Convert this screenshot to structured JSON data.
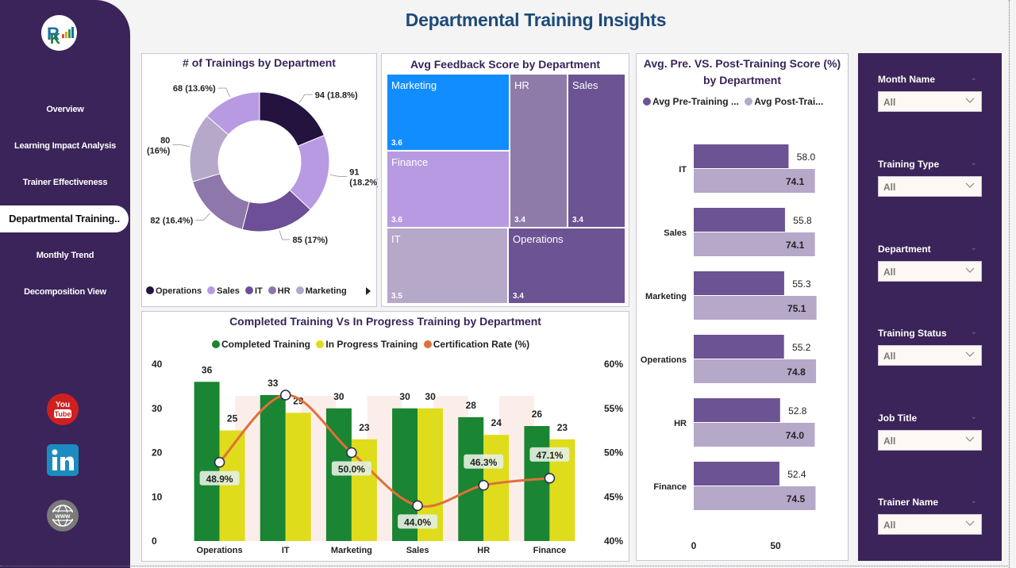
{
  "header": {
    "title": "Departmental Training Insights"
  },
  "nav": {
    "items": [
      {
        "label": "Overview",
        "active": false
      },
      {
        "label": "Learning Impact Analysis",
        "active": false
      },
      {
        "label": "Trainer Effectiveness",
        "active": false
      },
      {
        "label": "Departmental Training..",
        "active": true
      },
      {
        "label": "Monthly Trend",
        "active": false
      },
      {
        "label": "Decomposition View",
        "active": false
      }
    ],
    "social": [
      "youtube-icon",
      "linkedin-icon",
      "website-icon"
    ]
  },
  "filters": [
    {
      "label": "Month Name",
      "value": "All"
    },
    {
      "label": "Training Type",
      "value": "All"
    },
    {
      "label": "Department",
      "value": "All"
    },
    {
      "label": "Training Status",
      "value": "All"
    },
    {
      "label": "Job Title",
      "value": "All"
    },
    {
      "label": "Trainer Name",
      "value": "All"
    }
  ],
  "chart_data": [
    {
      "id": "donut",
      "type": "pie",
      "title": "# of Trainings by Department",
      "categories": [
        "Operations",
        "Sales",
        "IT",
        "HR",
        "Marketing",
        "Finance"
      ],
      "values": [
        94,
        91,
        85,
        82,
        80,
        68
      ],
      "labels": [
        "94 (18.8%)",
        "91 (18.2%)",
        "85 (17%)",
        "82 (16.4%)",
        "80 (16%)",
        "68 (13.6%)"
      ],
      "colors": [
        "#24123f",
        "#b89ae3",
        "#6c4f97",
        "#8e77ab",
        "#b5a8c8",
        "#b89ae3"
      ],
      "legend": [
        "Operations",
        "Sales",
        "IT",
        "HR",
        "Marketing"
      ],
      "legend_placement": "bottom"
    },
    {
      "id": "treemap",
      "type": "treemap",
      "title": "Avg Feedback Score by Department",
      "categories": [
        "Marketing",
        "Finance",
        "IT",
        "HR",
        "Sales",
        "Operations"
      ],
      "values": [
        3.6,
        3.6,
        3.5,
        3.4,
        3.4,
        3.4
      ],
      "colors": [
        "#118dff",
        "#b89ae3",
        "#b5a8c8",
        "#8e7ba9",
        "#6c5393",
        "#6c5393"
      ]
    },
    {
      "id": "hbar",
      "type": "bar",
      "orientation": "horizontal",
      "title": "Avg. Pre. VS. Post-Training Score (%) by Department",
      "categories": [
        "IT",
        "Sales",
        "Marketing",
        "Operations",
        "HR",
        "Finance"
      ],
      "series": [
        {
          "name": "Avg Pre-Training ...",
          "values": [
            58.0,
            55.8,
            55.3,
            55.2,
            52.8,
            52.4
          ],
          "color": "#6c5393"
        },
        {
          "name": "Avg Post-Trai...",
          "values": [
            74.1,
            74.1,
            75.1,
            74.8,
            74.0,
            74.5
          ],
          "color": "#b5a8c8"
        }
      ],
      "xticks": [
        "0",
        "50"
      ],
      "xlim": [
        0,
        100
      ],
      "legend_placement": "top"
    },
    {
      "id": "combo",
      "type": "bar",
      "title": "Completed Training Vs In Progress Training by Department",
      "categories": [
        "Operations",
        "IT",
        "Marketing",
        "Sales",
        "HR",
        "Finance"
      ],
      "series": [
        {
          "name": "Completed Training",
          "values": [
            36,
            33,
            30,
            30,
            28,
            26
          ],
          "color": "#1a8532"
        },
        {
          "name": "In Progress Training",
          "values": [
            25,
            29,
            23,
            30,
            24,
            23
          ],
          "color": "#dfdc1b"
        },
        {
          "name": "Certification Rate (%)",
          "type": "line",
          "axis": "right",
          "values": [
            48.9,
            56.5,
            50.0,
            44.0,
            46.3,
            47.1
          ],
          "labels": [
            "48.9%",
            "",
            "50.0%",
            "44.0%",
            "46.3%",
            "47.1%"
          ],
          "color": "#e0703a"
        }
      ],
      "ylim": [
        0,
        40
      ],
      "yticks": [
        "0",
        "10",
        "20",
        "30",
        "40"
      ],
      "y2lim": [
        40,
        60
      ],
      "y2ticks": [
        "40%",
        "45%",
        "50%",
        "55%",
        "60%"
      ],
      "legend_placement": "top"
    }
  ]
}
